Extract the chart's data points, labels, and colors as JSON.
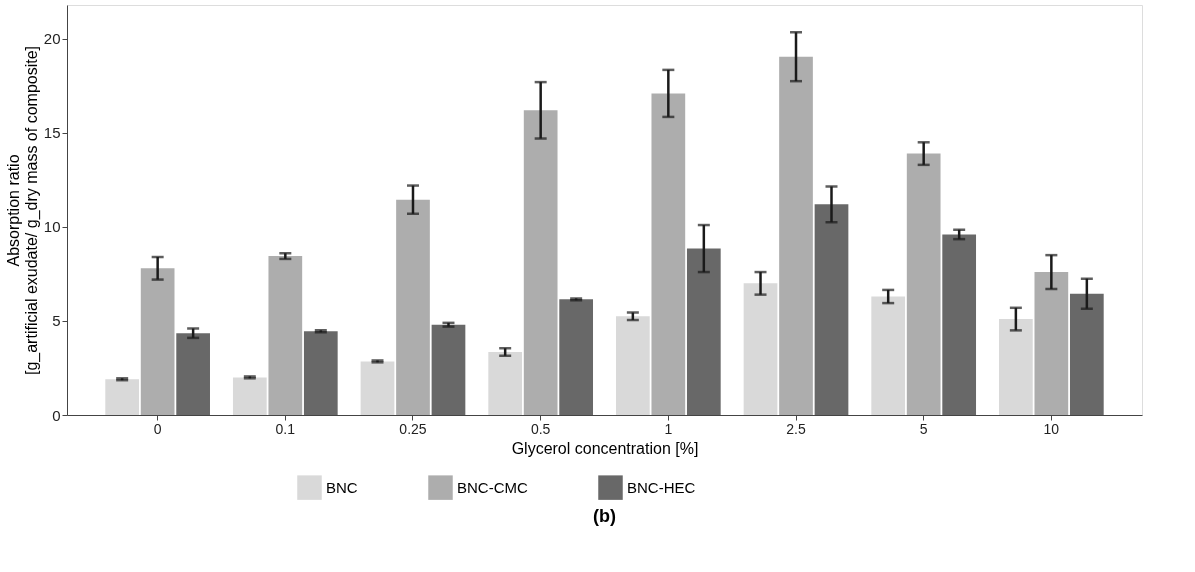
{
  "chart_data": {
    "type": "bar",
    "title": "(b)",
    "xlabel": "Glycerol concentration [%]",
    "ylabel": "Absorption ratio\n[g_artificial exudate/ g_dry mass of composite]",
    "categories": [
      "0",
      "0.1",
      "0.25",
      "0.5",
      "1",
      "2.5",
      "5",
      "10"
    ],
    "series": [
      {
        "name": "BNC",
        "color": "#d9d9d9",
        "values": [
          1.9,
          2.0,
          2.85,
          3.35,
          5.25,
          7.0,
          6.3,
          5.1
        ],
        "errors": [
          0.05,
          0.05,
          0.05,
          0.2,
          0.2,
          0.6,
          0.35,
          0.6
        ]
      },
      {
        "name": "BNC-CMC",
        "color": "#adadad",
        "values": [
          7.8,
          8.45,
          11.45,
          16.2,
          17.1,
          19.05,
          13.9,
          7.6
        ],
        "errors": [
          0.6,
          0.15,
          0.75,
          1.5,
          1.25,
          1.3,
          0.6,
          0.9
        ]
      },
      {
        "name": "BNC-HEC",
        "color": "#686868",
        "values": [
          4.35,
          4.45,
          4.8,
          6.15,
          8.85,
          11.2,
          9.6,
          6.45
        ],
        "errors": [
          0.25,
          0.05,
          0.1,
          0.05,
          1.25,
          0.95,
          0.25,
          0.8
        ]
      }
    ],
    "ylim": [
      0,
      21.8
    ],
    "yticks": [
      0,
      5,
      10,
      15,
      20
    ],
    "grid": false,
    "legend": "bottom"
  }
}
